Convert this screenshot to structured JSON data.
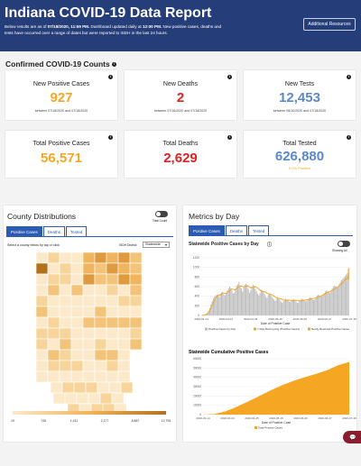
{
  "header": {
    "title": "Indiana COVID-19 Data Report",
    "sub_pre": "Below results are as of ",
    "sub_date": "07/18/2020, 11:59 PM.",
    "sub_mid": " Dashboard updated daily at ",
    "sub_time": "12:00 PM.",
    "sub_post": " New positive cases, deaths and tests have occurred over a range of dates but were reported to ISDH in the last 24 hours.",
    "additional_resources": "Additional Resources"
  },
  "confirmed_title": "Confirmed COVID-19 Counts",
  "cards": {
    "new_positive": {
      "label": "New Positive Cases",
      "value": "927",
      "note": "between 07/18/2020 and 07/18/2020"
    },
    "new_deaths": {
      "label": "New Deaths",
      "value": "2",
      "note": "between 07/16/2020 and 07/18/2020"
    },
    "new_tests": {
      "label": "New Tests",
      "value": "12,453",
      "note": "between 06/10/2020 and 07/18/2020"
    },
    "total_positive": {
      "label": "Total Positive Cases",
      "value": "56,571"
    },
    "total_deaths": {
      "label": "Total Deaths",
      "value": "2,629"
    },
    "total_tested": {
      "label": "Total Tested",
      "value": "626,880",
      "note": "9.0% Positive"
    }
  },
  "county": {
    "title": "County Distributions",
    "toggle_label": "Total Count",
    "tabs": [
      "Positive Cases",
      "Deaths",
      "Tested"
    ],
    "select_prompt": "Select a county below by tap or click",
    "district_label": "ISDH District",
    "district_value": "Statewide",
    "legend_ticks": [
      "19",
      "745",
      "1,411",
      "2,177",
      "8,887",
      "12,763"
    ],
    "colors": {
      "low": "#fbe9c9",
      "mid": "#f0b45c",
      "high": "#b5701b"
    }
  },
  "metrics": {
    "title": "Metrics by Day",
    "tabs": [
      "Positive Cases",
      "Deaths",
      "Tested"
    ],
    "toggle_label": "Showing All"
  },
  "chart_data": [
    {
      "type": "bar",
      "title": "Statewide Positive Cases by Day",
      "xlabel": "Date of Positive Case",
      "ylim": [
        0,
        1200
      ],
      "y_ticks": [
        "0",
        "200",
        "400",
        "600",
        "800",
        "1000",
        "1200"
      ],
      "x_ticks": [
        "2020-03-14",
        "2020-04-04",
        "2020-04-25",
        "2020-05-16",
        "2020-06-06",
        "2020-06-27",
        "2020-07-18"
      ],
      "legend": [
        "Positive Cases by Day",
        "7-Day Moving Avg (Positive Cases)",
        "Newly Reported Positive Cases"
      ],
      "values": [
        2,
        4,
        8,
        15,
        30,
        60,
        100,
        160,
        230,
        300,
        360,
        400,
        420,
        430,
        440,
        380,
        450,
        480,
        500,
        430,
        420,
        470,
        520,
        560,
        600,
        570,
        520,
        460,
        470,
        560,
        620,
        650,
        700,
        620,
        560,
        500,
        580,
        640,
        660,
        630,
        550,
        470,
        520,
        600,
        640,
        620,
        560,
        500,
        450,
        420,
        470,
        540,
        520,
        490,
        440,
        390,
        360,
        420,
        460,
        430,
        400,
        360,
        330,
        300,
        340,
        380,
        360,
        330,
        290,
        260,
        290,
        330,
        350,
        330,
        310,
        290,
        280,
        300,
        330,
        340,
        320,
        290,
        260,
        270,
        300,
        330,
        350,
        340,
        310,
        290,
        300,
        330,
        360,
        380,
        370,
        340,
        320,
        340,
        380,
        410,
        430,
        420,
        400,
        390,
        420,
        460,
        500,
        520,
        510,
        480,
        470,
        520,
        560,
        600,
        620,
        610,
        580,
        600,
        650,
        700,
        740,
        760,
        790,
        820,
        850,
        880,
        980
      ],
      "moving_avg": [
        2,
        4,
        8,
        14,
        24,
        45,
        75,
        115,
        165,
        220,
        275,
        320,
        360,
        395,
        415,
        420,
        430,
        440,
        460,
        465,
        460,
        465,
        480,
        500,
        520,
        540,
        550,
        545,
        535,
        540,
        560,
        585,
        605,
        615,
        610,
        600,
        595,
        595,
        605,
        620,
        610,
        590,
        575,
        580,
        590,
        600,
        595,
        585,
        570,
        550,
        525,
        510,
        505,
        500,
        495,
        480,
        460,
        450,
        445,
        440,
        430,
        415,
        400,
        385,
        370,
        360,
        355,
        350,
        345,
        335,
        320,
        315,
        315,
        318,
        320,
        318,
        315,
        310,
        310,
        312,
        315,
        315,
        312,
        308,
        306,
        305,
        308,
        312,
        318,
        322,
        325,
        328,
        332,
        338,
        345,
        352,
        358,
        362,
        368,
        375,
        385,
        395,
        405,
        415,
        425,
        438,
        452,
        465,
        478,
        490,
        500,
        512,
        525,
        540,
        555,
        570,
        585,
        600,
        618,
        640,
        665,
        690,
        715,
        740,
        765,
        790,
        815
      ]
    },
    {
      "type": "area",
      "title": "Statewide Cumulative Positive Cases",
      "xlabel": "Date of Positive Case",
      "ylim": [
        0,
        60000
      ],
      "y_ticks": [
        "0",
        "10000",
        "20000",
        "30000",
        "40000",
        "50000",
        "60000"
      ],
      "x_ticks": [
        "2020-03-14",
        "2020-04-04",
        "2020-04-25",
        "2020-05-16",
        "2020-06-06",
        "2020-06-27",
        "2020-07-18"
      ],
      "legend": [
        "Total Positive Cases"
      ],
      "values": [
        0,
        600,
        3500,
        8500,
        14000,
        20000,
        26000,
        31500,
        36000,
        40000,
        43500,
        47500,
        53000,
        56571
      ]
    }
  ]
}
